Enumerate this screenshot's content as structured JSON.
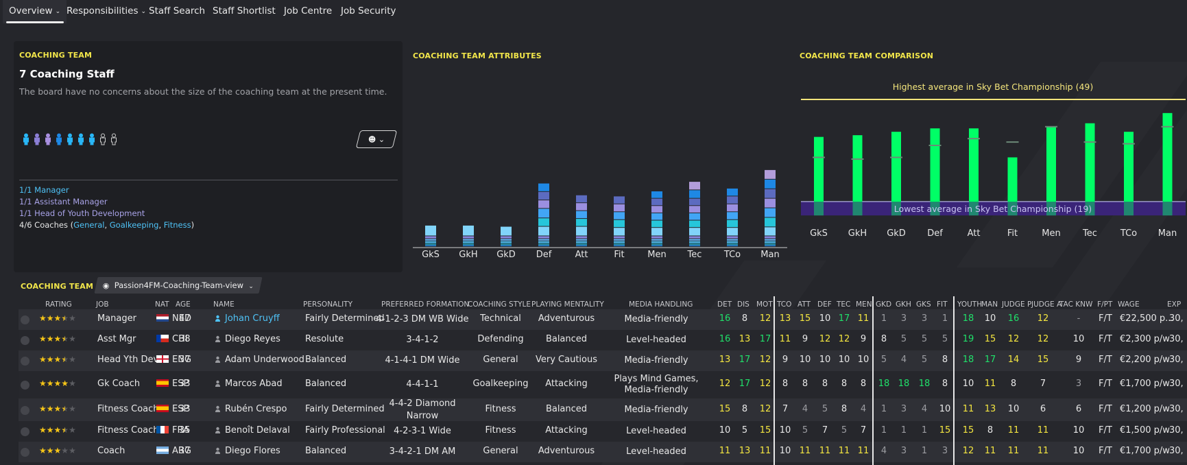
{
  "nav": {
    "tabs": [
      {
        "label": "Overview",
        "has_menu": true,
        "active": true
      },
      {
        "label": "Responsibilities",
        "has_menu": true,
        "active": false
      },
      {
        "label": "Staff Search",
        "has_menu": false,
        "active": false
      },
      {
        "label": "Staff Shortlist",
        "has_menu": false,
        "active": false
      },
      {
        "label": "Job Centre",
        "has_menu": false,
        "active": false
      },
      {
        "label": "Job Security",
        "has_menu": false,
        "active": false
      }
    ]
  },
  "coaching_team": {
    "title": "COACHING TEAM",
    "headline": "7 Coaching Staff",
    "description": "The board have no concerns about the size of the coaching team at the present time.",
    "staff_icons": [
      "#29b6f6",
      "#8c7fd6",
      "#a98fe0",
      "#1e88e5",
      "#29b6f6",
      "#29b6f6",
      "#29b6f6",
      "empty",
      "empty"
    ],
    "view_button_icon": "person-view-icon",
    "roles": [
      {
        "text": "1/1 Manager",
        "color": "blue"
      },
      {
        "text": "1/1 Assistant Manager",
        "color": "purple"
      },
      {
        "text": "1/1 Head of Youth Development",
        "color": "purple"
      }
    ],
    "coaches_prefix": "4/6 Coaches (",
    "coaches_links": [
      "General",
      "Goalkeeping",
      "Fitness"
    ],
    "coaches_sep": ", ",
    "coaches_suffix": ")"
  },
  "attributes_title": "COACHING TEAM ATTRIBUTES",
  "comparison_title": "COACHING TEAM COMPARISON",
  "chart_data": [
    {
      "type": "bar",
      "title": "COACHING TEAM ATTRIBUTES",
      "stacked": true,
      "categories": [
        "GkS",
        "GkH",
        "GkD",
        "Def",
        "Att",
        "Fit",
        "Men",
        "Tec",
        "TCo",
        "Man"
      ],
      "stacks": [
        [
          3,
          3,
          3,
          3,
          3,
          3,
          3,
          3,
          3,
          3
        ],
        [
          3,
          3,
          3,
          3,
          3,
          3,
          3,
          3,
          3,
          3
        ],
        [
          4,
          4,
          4,
          4,
          4,
          4,
          4,
          4,
          4,
          4
        ],
        [
          4,
          4,
          4,
          4,
          4,
          4,
          4,
          4,
          4,
          4
        ],
        [
          5,
          5,
          5,
          5,
          5,
          5,
          5,
          5,
          5,
          5
        ],
        [
          19,
          19,
          17,
          17,
          17,
          15,
          15,
          15,
          15,
          16
        ],
        [
          0,
          0,
          0,
          15,
          14,
          14,
          13,
          13,
          14,
          17
        ],
        [
          0,
          0,
          0,
          17,
          14,
          14,
          13,
          13,
          14,
          17
        ],
        [
          0,
          0,
          0,
          15,
          14,
          14,
          13,
          13,
          14,
          17
        ],
        [
          0,
          0,
          0,
          15,
          14,
          14,
          13,
          13,
          14,
          17
        ],
        [
          0,
          0,
          0,
          15,
          0,
          0,
          13,
          15,
          14,
          17
        ],
        [
          0,
          0,
          0,
          0,
          0,
          0,
          0,
          15,
          0,
          17
        ]
      ],
      "segment_colors": [
        "#2196f3",
        "#29c6e4",
        "#4fc3f7",
        "#64b5f6",
        "#8884d9",
        "#81d4fa",
        "#26c6da",
        "#42a5f5",
        "#9b8fe0",
        "#5c6bc0",
        "#1e88e5",
        "#b39ddb"
      ],
      "ylim": [
        0,
        220
      ]
    },
    {
      "type": "bar",
      "title": "COACHING TEAM COMPARISON",
      "categories": [
        "GkS",
        "GkH",
        "GkD",
        "Def",
        "Att",
        "Fit",
        "Men",
        "Tec",
        "TCo",
        "Man"
      ],
      "values": [
        38,
        38.5,
        39.5,
        40.5,
        40.5,
        32,
        41,
        42,
        39.5,
        45
      ],
      "averages": [
        32,
        31.5,
        32,
        35.5,
        37.5,
        36.5,
        41,
        36.5,
        36,
        41
      ],
      "highest_label": "Highest average in Sky Bet Championship (49)",
      "highest_value": 49,
      "lowest_label": "Lowest average in Sky Bet Championship (19)",
      "lowest_value": 19,
      "bar_color": "#00ff66",
      "ylim": [
        16,
        51
      ]
    }
  ],
  "table": {
    "title": "COACHING TEAM",
    "view_name": "Passion4FM-Coaching-Team-view",
    "view_icon": "eye-icon",
    "headers": {
      "rating": "RATING",
      "job": "JOB",
      "nat": "NAT",
      "age": "AGE",
      "name": "NAME",
      "personality": "PERSONALITY",
      "formation": "PREFERRED FORMATION",
      "style": "COACHING STYLE",
      "mentality": "PLAYING MENTALITY",
      "media": "MEDIA HANDLING",
      "det": "DET",
      "dis": "DIS",
      "mot": "MOT",
      "tco": "TCO",
      "att": "ATT",
      "def": "DEF",
      "tec": "TEC",
      "men": "MEN",
      "gkd": "GKD",
      "gkh": "GKH",
      "gks": "GKS",
      "fit": "FIT",
      "youth": "YOUTH",
      "man": "MAN",
      "judgep": "JUDGE P",
      "judgea": "JUDGE A",
      "tacknw": "TAC KNW",
      "fpt": "F/PT",
      "wage": "WAGE",
      "exp": "EXP"
    },
    "rows": [
      {
        "stars": 3.5,
        "job": "Manager",
        "nat": "NED",
        "flag": "ned",
        "age": "47",
        "name": "Johan Cruyff",
        "name_link": true,
        "personality": "Fairly Determined",
        "formation": [
          "4-1-2-3 DM WB Wide"
        ],
        "style": "Technical",
        "mentality": "Adventurous",
        "media": [
          "Media-friendly"
        ],
        "stats": [
          "16",
          "8",
          "12",
          "13",
          "15",
          "10",
          "17",
          "11",
          "1",
          "3",
          "3",
          "1",
          "18",
          "10",
          "16",
          "12",
          "-"
        ],
        "fpt": "F/T",
        "wage": "€22,500 p...",
        "exp": "30,"
      },
      {
        "stars": 3.5,
        "job": "Asst Mgr",
        "nat": "CHI",
        "flag": "chi",
        "age": "38",
        "name": "Diego Reyes",
        "name_link": false,
        "personality": "Resolute",
        "formation": [
          "3-4-1-2"
        ],
        "style": "Defending",
        "mentality": "Balanced",
        "media": [
          "Level-headed"
        ],
        "stats": [
          "16",
          "13",
          "17",
          "11",
          "9",
          "12",
          "12",
          "9",
          "8",
          "5",
          "5",
          "5",
          "19",
          "15",
          "12",
          "12",
          "10"
        ],
        "fpt": "F/T",
        "wage": "€2,300 p/w",
        "exp": "30,"
      },
      {
        "stars": 3.5,
        "job": "Head Yth Dev",
        "nat": "ENG",
        "flag": "eng",
        "age": "37",
        "name": "Adam Underwood",
        "name_link": false,
        "personality": "Balanced",
        "formation": [
          "4-1-4-1 DM Wide"
        ],
        "style": "General",
        "mentality": "Very Cautious",
        "media": [
          "Media-friendly"
        ],
        "stats": [
          "13",
          "17",
          "12",
          "9",
          "10",
          "10",
          "10",
          "10",
          "5",
          "4",
          "5",
          "8",
          "18",
          "17",
          "14",
          "15",
          "9"
        ],
        "fpt": "F/T",
        "wage": "€2,200 p/w",
        "exp": "30,"
      },
      {
        "stars": 4,
        "job": "Gk Coach",
        "nat": "ESP",
        "flag": "esp",
        "age": "33",
        "name": "Marcos Abad",
        "name_link": false,
        "personality": "Balanced",
        "formation": [
          "4-4-1-1"
        ],
        "style": "Goalkeeping",
        "mentality": "Attacking",
        "media": [
          "Plays Mind Games,",
          "Media-friendly"
        ],
        "stats": [
          "12",
          "17",
          "12",
          "8",
          "8",
          "8",
          "8",
          "8",
          "18",
          "18",
          "18",
          "8",
          "10",
          "11",
          "8",
          "7",
          "3"
        ],
        "fpt": "F/T",
        "wage": "€1,700 p/w",
        "exp": "30,"
      },
      {
        "stars": 3.5,
        "job": "Fitness Coach",
        "nat": "ESP",
        "flag": "esp",
        "age": "33",
        "name": "Rubén Crespo",
        "name_link": false,
        "personality": "Fairly Determined",
        "formation": [
          "4-4-2 Diamond",
          "Narrow"
        ],
        "style": "Fitness",
        "mentality": "Balanced",
        "media": [
          "Media-friendly"
        ],
        "stats": [
          "15",
          "8",
          "12",
          "7",
          "4",
          "5",
          "8",
          "4",
          "1",
          "3",
          "4",
          "10",
          "11",
          "13",
          "10",
          "6",
          "6"
        ],
        "fpt": "F/T",
        "wage": "€1,200 p/w",
        "exp": "30,"
      },
      {
        "stars": 3.5,
        "job": "Fitness Coach",
        "nat": "FRA",
        "flag": "fra",
        "age": "35",
        "name": "Benoît Delaval",
        "name_link": false,
        "personality": "Fairly Professional",
        "formation": [
          "4-2-3-1 Wide"
        ],
        "style": "Fitness",
        "mentality": "Attacking",
        "media": [
          "Level-headed"
        ],
        "stats": [
          "10",
          "5",
          "15",
          "10",
          "5",
          "7",
          "5",
          "7",
          "1",
          "1",
          "1",
          "15",
          "15",
          "8",
          "11",
          "11",
          "10"
        ],
        "fpt": "F/T",
        "wage": "€1,500 p/w",
        "exp": "30,"
      },
      {
        "stars": 3,
        "job": "Coach",
        "nat": "ARG",
        "flag": "arg",
        "age": "37",
        "name": "Diego Flores",
        "name_link": false,
        "personality": "Balanced",
        "formation": [
          "3-4-2-1 DM AM"
        ],
        "style": "General",
        "mentality": "Adventurous",
        "media": [
          "Level-headed"
        ],
        "stats": [
          "11",
          "13",
          "11",
          "10",
          "11",
          "11",
          "11",
          "11",
          "4",
          "3",
          "1",
          "3",
          "12",
          "11",
          "11",
          "11",
          "10"
        ],
        "fpt": "F/T",
        "wage": "€1,700 p/w",
        "exp": "30,"
      }
    ]
  }
}
